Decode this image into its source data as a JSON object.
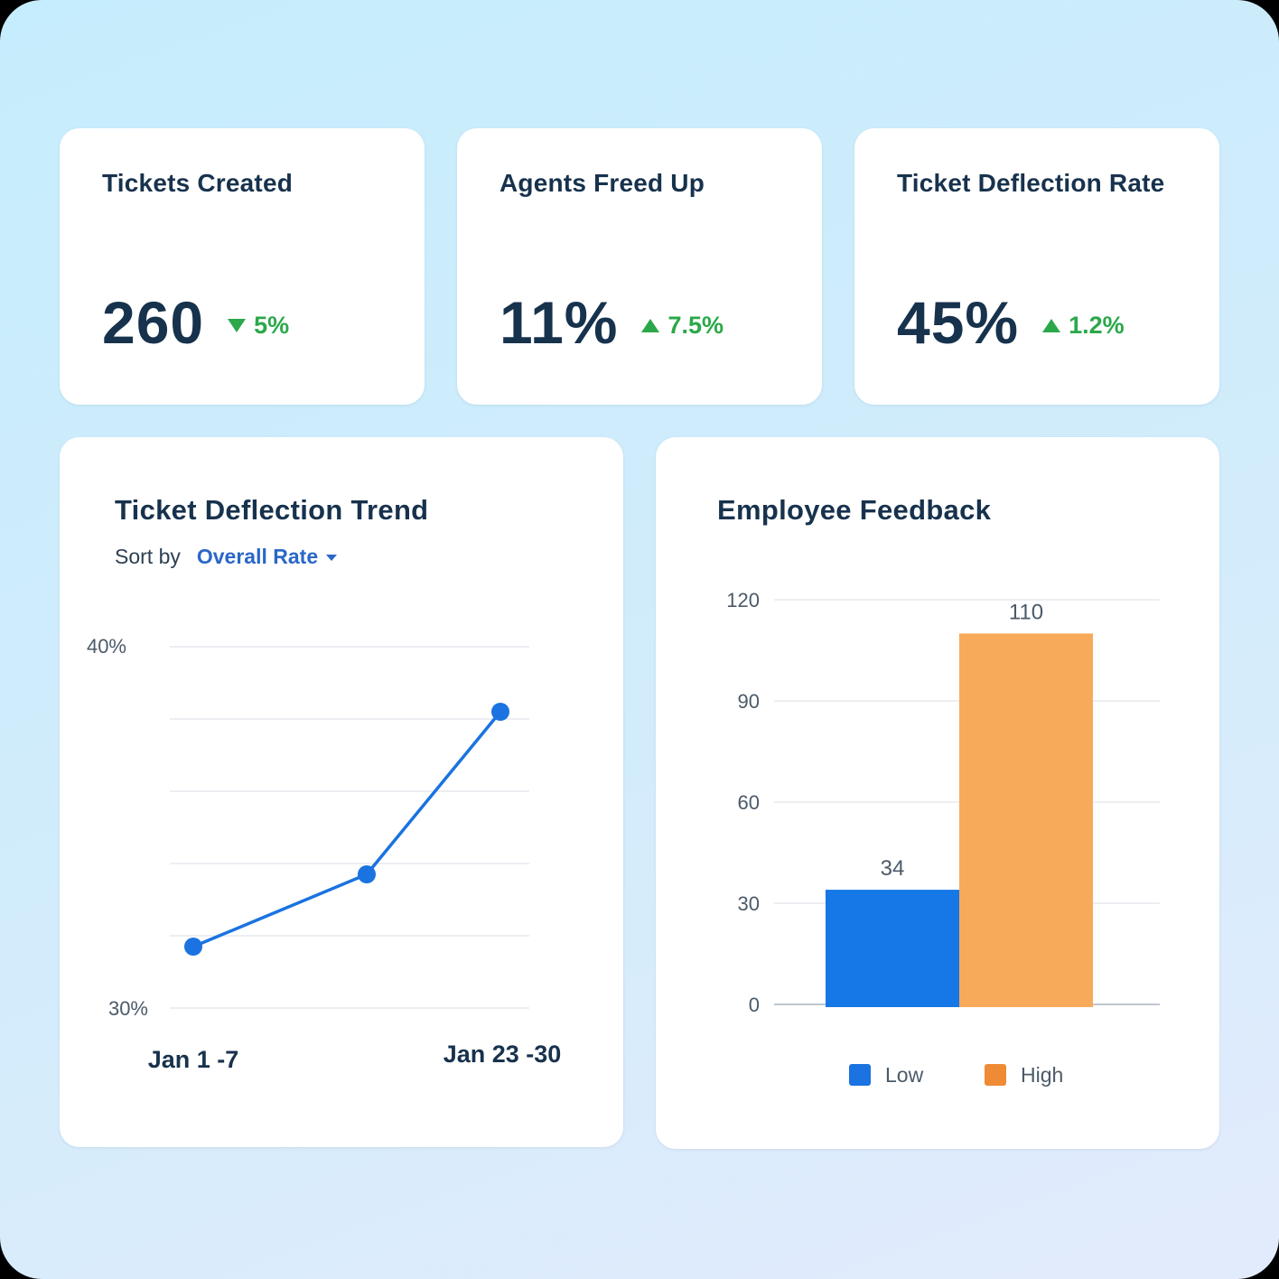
{
  "kpis": [
    {
      "title": "Tickets Created",
      "value": "260",
      "delta": "5%",
      "direction": "down",
      "delta_color": "#2ba84a"
    },
    {
      "title": "Agents Freed Up",
      "value": "11%",
      "delta": "7.5%",
      "direction": "up",
      "delta_color": "#2ba84a"
    },
    {
      "title": "Ticket Deflection Rate",
      "value": "45%",
      "delta": "1.2%",
      "direction": "up",
      "delta_color": "#2ba84a"
    }
  ],
  "trend": {
    "title": "Ticket Deflection Trend",
    "sort_label": "Sort by",
    "sort_value": "Overall Rate",
    "x_start_label": "Jan 1 -7",
    "x_end_label": "Jan 23 -30"
  },
  "feedback": {
    "title": "Employee Feedback"
  },
  "chart_data": [
    {
      "type": "line",
      "title": "Ticket Deflection Trend",
      "x": [
        "Jan 1 -7",
        "",
        "Jan 23 -30"
      ],
      "series": [
        {
          "values": [
            31.7,
            33.7,
            38.2
          ],
          "color": "#1a73e0"
        }
      ],
      "ylim": [
        30,
        40
      ],
      "ytick_labels": [
        "30%",
        "40%"
      ],
      "grid": true
    },
    {
      "type": "bar",
      "title": "Employee Feedback",
      "categories": [
        "Low",
        "High"
      ],
      "values": [
        34,
        110
      ],
      "data_labels": [
        "34",
        "110"
      ],
      "colors": [
        "#1578e6",
        "#f7aa5a"
      ],
      "legend": [
        {
          "name": "Low",
          "color": "#1a73e0"
        },
        {
          "name": "High",
          "color": "#ef8a35"
        }
      ],
      "legend_placement": "bottom",
      "ylim": [
        0,
        120
      ],
      "yticks": [
        "0",
        "30",
        "60",
        "90",
        "120"
      ],
      "grid": true
    }
  ]
}
